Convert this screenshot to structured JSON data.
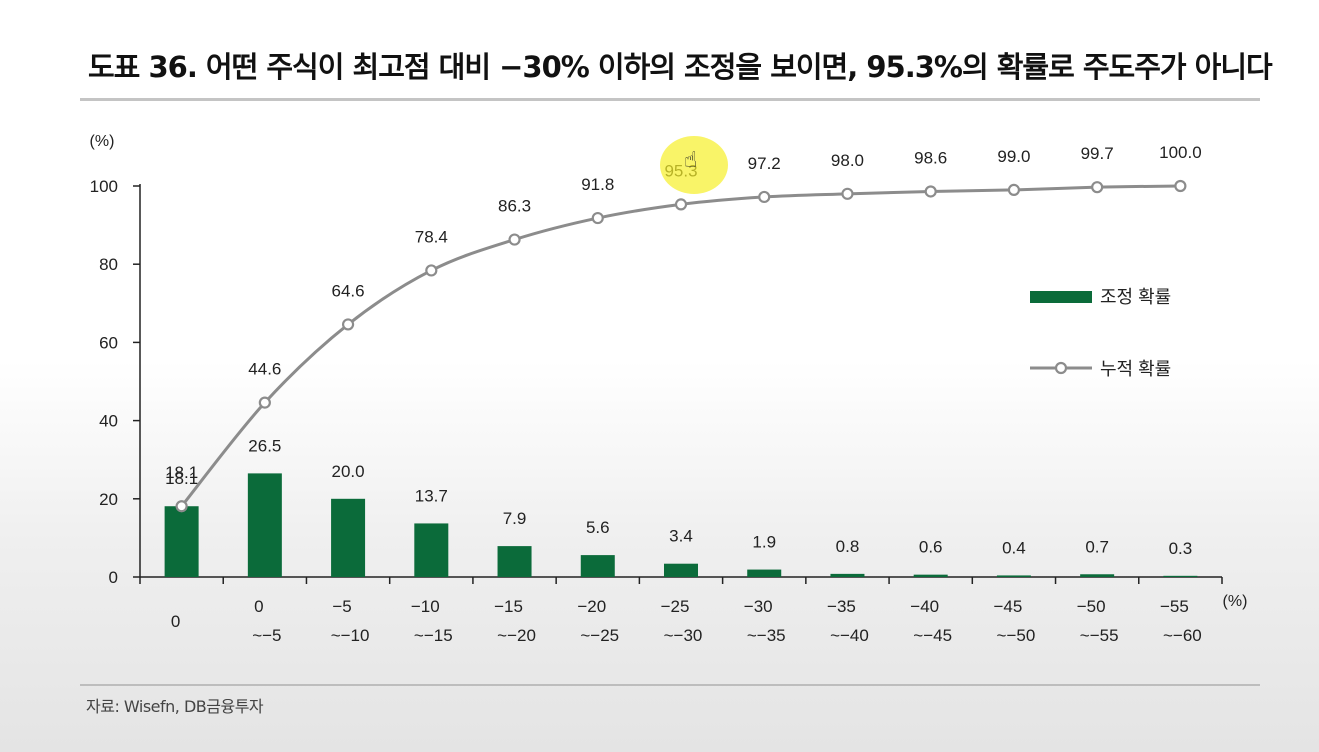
{
  "title": "도표 36. 어떤 주식이 최고점 대비 −30% 이하의 조정을 보이면, 95.3%의 확률로 주도주가 아니다",
  "source": "자료: Wisefn, DB금융투자",
  "cursor_icon": "hand-pointer-icon",
  "chart_data": {
    "type": "bar",
    "y_unit": "(%)",
    "x_unit": "(%)",
    "ylim": [
      0,
      100
    ],
    "yticks": [
      0,
      20,
      40,
      60,
      80,
      100
    ],
    "grid": false,
    "legend_position": "right",
    "categories": [
      {
        "top": "0",
        "bottom": ""
      },
      {
        "top": "0",
        "bottom": "~−5"
      },
      {
        "top": "−5",
        "bottom": "~−10"
      },
      {
        "top": "−10",
        "bottom": "~−15"
      },
      {
        "top": "−15",
        "bottom": "~−20"
      },
      {
        "top": "−20",
        "bottom": "~−25"
      },
      {
        "top": "−25",
        "bottom": "~−30"
      },
      {
        "top": "−30",
        "bottom": "~−35"
      },
      {
        "top": "−35",
        "bottom": "~−40"
      },
      {
        "top": "−40",
        "bottom": "~−45"
      },
      {
        "top": "−45",
        "bottom": "~−50"
      },
      {
        "top": "−50",
        "bottom": "~−55"
      },
      {
        "top": "−55",
        "bottom": "~−60"
      }
    ],
    "series": [
      {
        "name": "조정 확률",
        "type": "bar",
        "color": "#0b6b3a",
        "values": [
          18.1,
          26.5,
          20.0,
          13.7,
          7.9,
          5.6,
          3.4,
          1.9,
          0.8,
          0.6,
          0.4,
          0.7,
          0.3
        ],
        "labels": [
          "18.1",
          "26.5",
          "20.0",
          "13.7",
          "7.9",
          "5.6",
          "3.4",
          "1.9",
          "0.8",
          "0.6",
          "0.4",
          "0.7",
          "0.3"
        ]
      },
      {
        "name": "누적 확률",
        "type": "line",
        "color": "#8c8c8c",
        "values": [
          18.1,
          44.6,
          64.6,
          78.4,
          86.3,
          91.8,
          95.3,
          97.2,
          98.0,
          98.6,
          99.0,
          99.7,
          100.0
        ],
        "labels": [
          "18.1",
          "44.6",
          "64.6",
          "78.4",
          "86.3",
          "91.8",
          "95.3",
          "97.2",
          "98.0",
          "98.6",
          "99.0",
          "99.7",
          "100.0"
        ]
      }
    ]
  }
}
